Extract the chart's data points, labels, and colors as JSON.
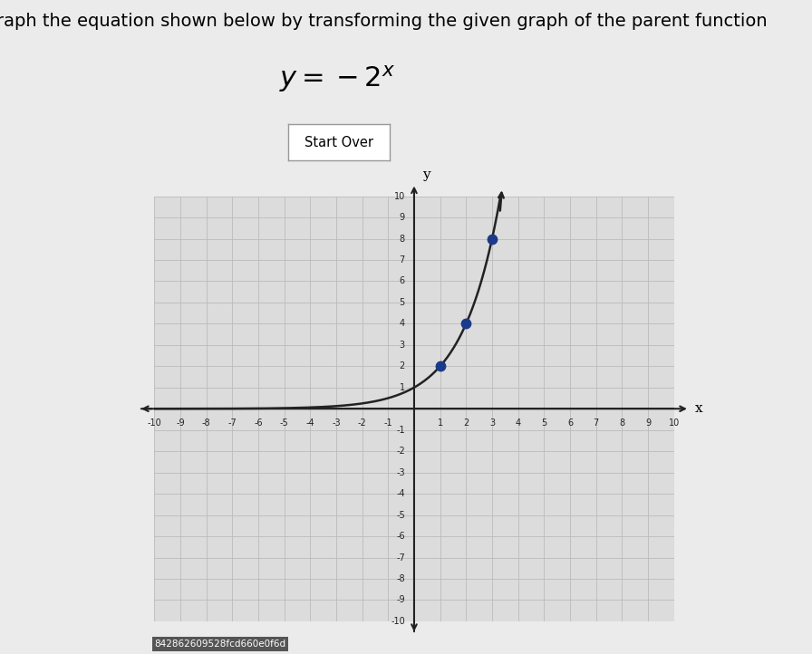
{
  "title_text": "raph the equation shown below by transforming the given graph of the parent function",
  "equation_latex": "$y = -2^x$",
  "button_text": "Start Over",
  "bg_color": "#ebebeb",
  "grid_bg": "#dcdcdc",
  "xlim": [
    -10,
    10
  ],
  "ylim": [
    -10,
    10
  ],
  "xticks": [
    -10,
    -9,
    -8,
    -7,
    -6,
    -5,
    -4,
    -3,
    -2,
    -1,
    0,
    1,
    2,
    3,
    4,
    5,
    6,
    7,
    8,
    9,
    10
  ],
  "yticks": [
    -10,
    -9,
    -8,
    -7,
    -6,
    -5,
    -4,
    -3,
    -2,
    -1,
    0,
    1,
    2,
    3,
    4,
    5,
    6,
    7,
    8,
    9,
    10
  ],
  "curve_color": "#222222",
  "dot_color": "#1a3a8a",
  "dot_points": [
    [
      1,
      2
    ],
    [
      2,
      4
    ],
    [
      3,
      8
    ]
  ],
  "watermark": "842862609528fcd660e0f6d",
  "grid_color": "#bbbbbb",
  "axis_color": "#222222",
  "tick_fontsize": 7,
  "title_fontsize": 14,
  "eq_fontsize": 22
}
